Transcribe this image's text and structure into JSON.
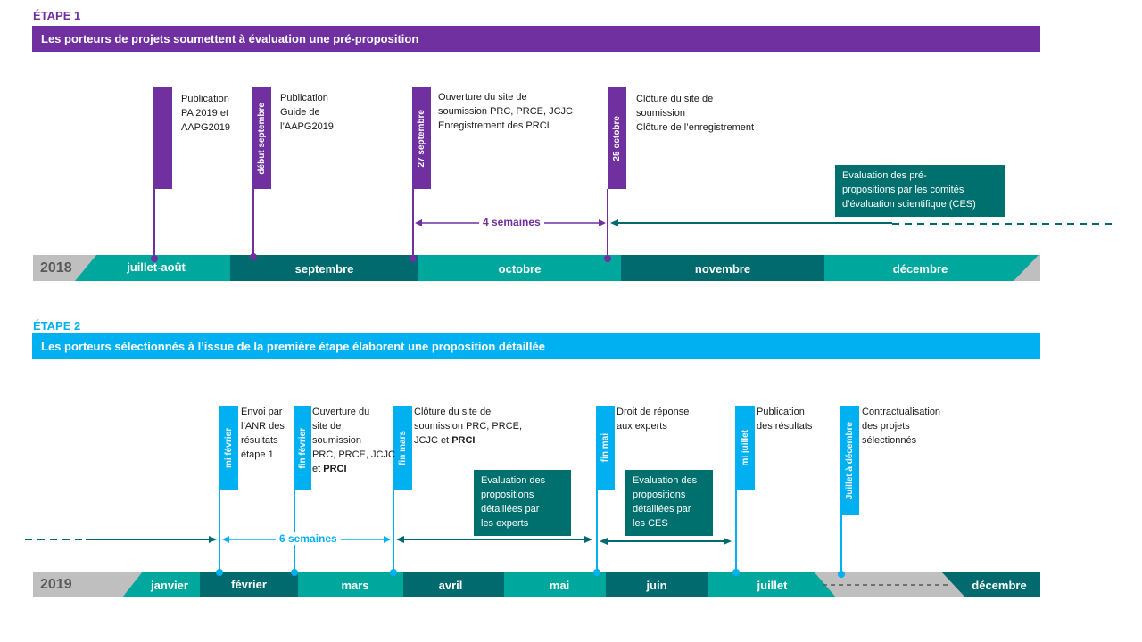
{
  "colors": {
    "purple": "#7030a0",
    "blue": "#00b0f0",
    "teal": "#00a79d",
    "dark_teal": "#006a6e",
    "box_teal": "#00706f",
    "gray": "#bfbfbf"
  },
  "stage1": {
    "label": "ÉTAPE 1",
    "banner": "Les porteurs de projets soumettent à évaluation une pré-proposition",
    "year": "2018",
    "months": [
      "juillet-août",
      "septembre",
      "octobre",
      "novembre",
      "décembre"
    ],
    "flags": [
      "début septembre",
      "27 septembre",
      "25 octobre"
    ],
    "notes": [
      [
        "Publication",
        "PA 2019 et",
        "AAPG2019"
      ],
      [
        "Publication",
        "Guide de",
        "l’AAPG2019"
      ],
      [
        "Ouverture du site de",
        "soumission PRC, PRCE, JCJC",
        "Enregistrement des PRCI"
      ],
      [
        "Clôture du site de",
        "soumission",
        "Clôture de l’enregistrement"
      ]
    ],
    "duration": "4 semaines",
    "eval_box": [
      "Evaluation des pré-",
      "propositions par les comités",
      "d’évaluation scientifique (CES)"
    ]
  },
  "stage2": {
    "label": "ÉTAPE 2",
    "banner": "Les porteurs sélectionnés à l’issue de la première étape élaborent une proposition détaillée",
    "year": "2019",
    "months": [
      "janvier",
      "février",
      "mars",
      "avril",
      "mai",
      "juin",
      "juillet",
      "décembre"
    ],
    "flags": [
      "mi février",
      "fin février",
      "fin mars",
      "fin mai",
      "mi juillet",
      "Juillet à décembre"
    ],
    "notes": {
      "envoi": [
        "Envoi par",
        "l’ANR des",
        "résultats",
        "étape 1"
      ],
      "ouverture": [
        "Ouverture du",
        "site de",
        "soumission",
        "PRC, PRCE, JCJC"
      ],
      "ouverture_last_prefix": "et ",
      "ouverture_last_bold": "PRCI",
      "cloture": [
        "Clôture du site de",
        "soumission PRC, PRCE,"
      ],
      "cloture_last_prefix": "JCJC et ",
      "cloture_last_bold": "PRCI",
      "droit": [
        "Droit de réponse",
        "aux experts"
      ],
      "publication": [
        "Publication",
        "des résultats"
      ],
      "contract": [
        "Contractualisation",
        "des projets",
        "sélectionnés"
      ]
    },
    "duration": "6 semaines",
    "eval_experts": [
      "Evaluation des",
      "propositions",
      "détaillées par",
      "les experts"
    ],
    "eval_ces": [
      "Evaluation des",
      "propositions",
      "détaillées par",
      "les CES"
    ]
  }
}
